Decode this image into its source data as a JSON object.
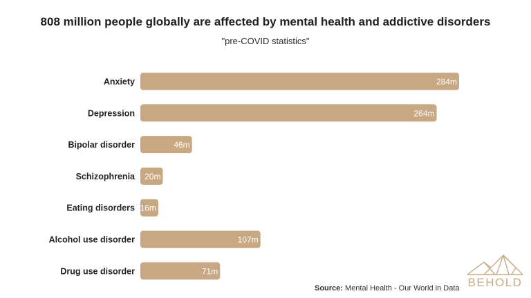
{
  "chart_data": {
    "type": "bar",
    "orientation": "horizontal",
    "title": "808 million people globally are affected by mental health and addictive disorders",
    "subtitle": "\"pre-COVID statistics\"",
    "categories": [
      "Anxiety",
      "Depression",
      "Bipolar disorder",
      "Schizophrenia",
      "Eating disorders",
      "Alcohol use disorder",
      "Drug use disorder"
    ],
    "values": [
      284,
      264,
      46,
      20,
      16,
      107,
      71
    ],
    "value_labels": [
      "284m",
      "264m",
      "46m",
      "20m",
      "16m",
      "107m",
      "71m"
    ],
    "unit": "million",
    "xlim": [
      0,
      284
    ],
    "bar_color": "#c8a882",
    "label_color": "#ffffff",
    "grid": false,
    "legend": "none"
  },
  "source": {
    "label": "Source:",
    "text": "Mental Health - Our World in Data"
  },
  "logo": {
    "text": "BEHOLD",
    "color": "#c9ab86"
  }
}
